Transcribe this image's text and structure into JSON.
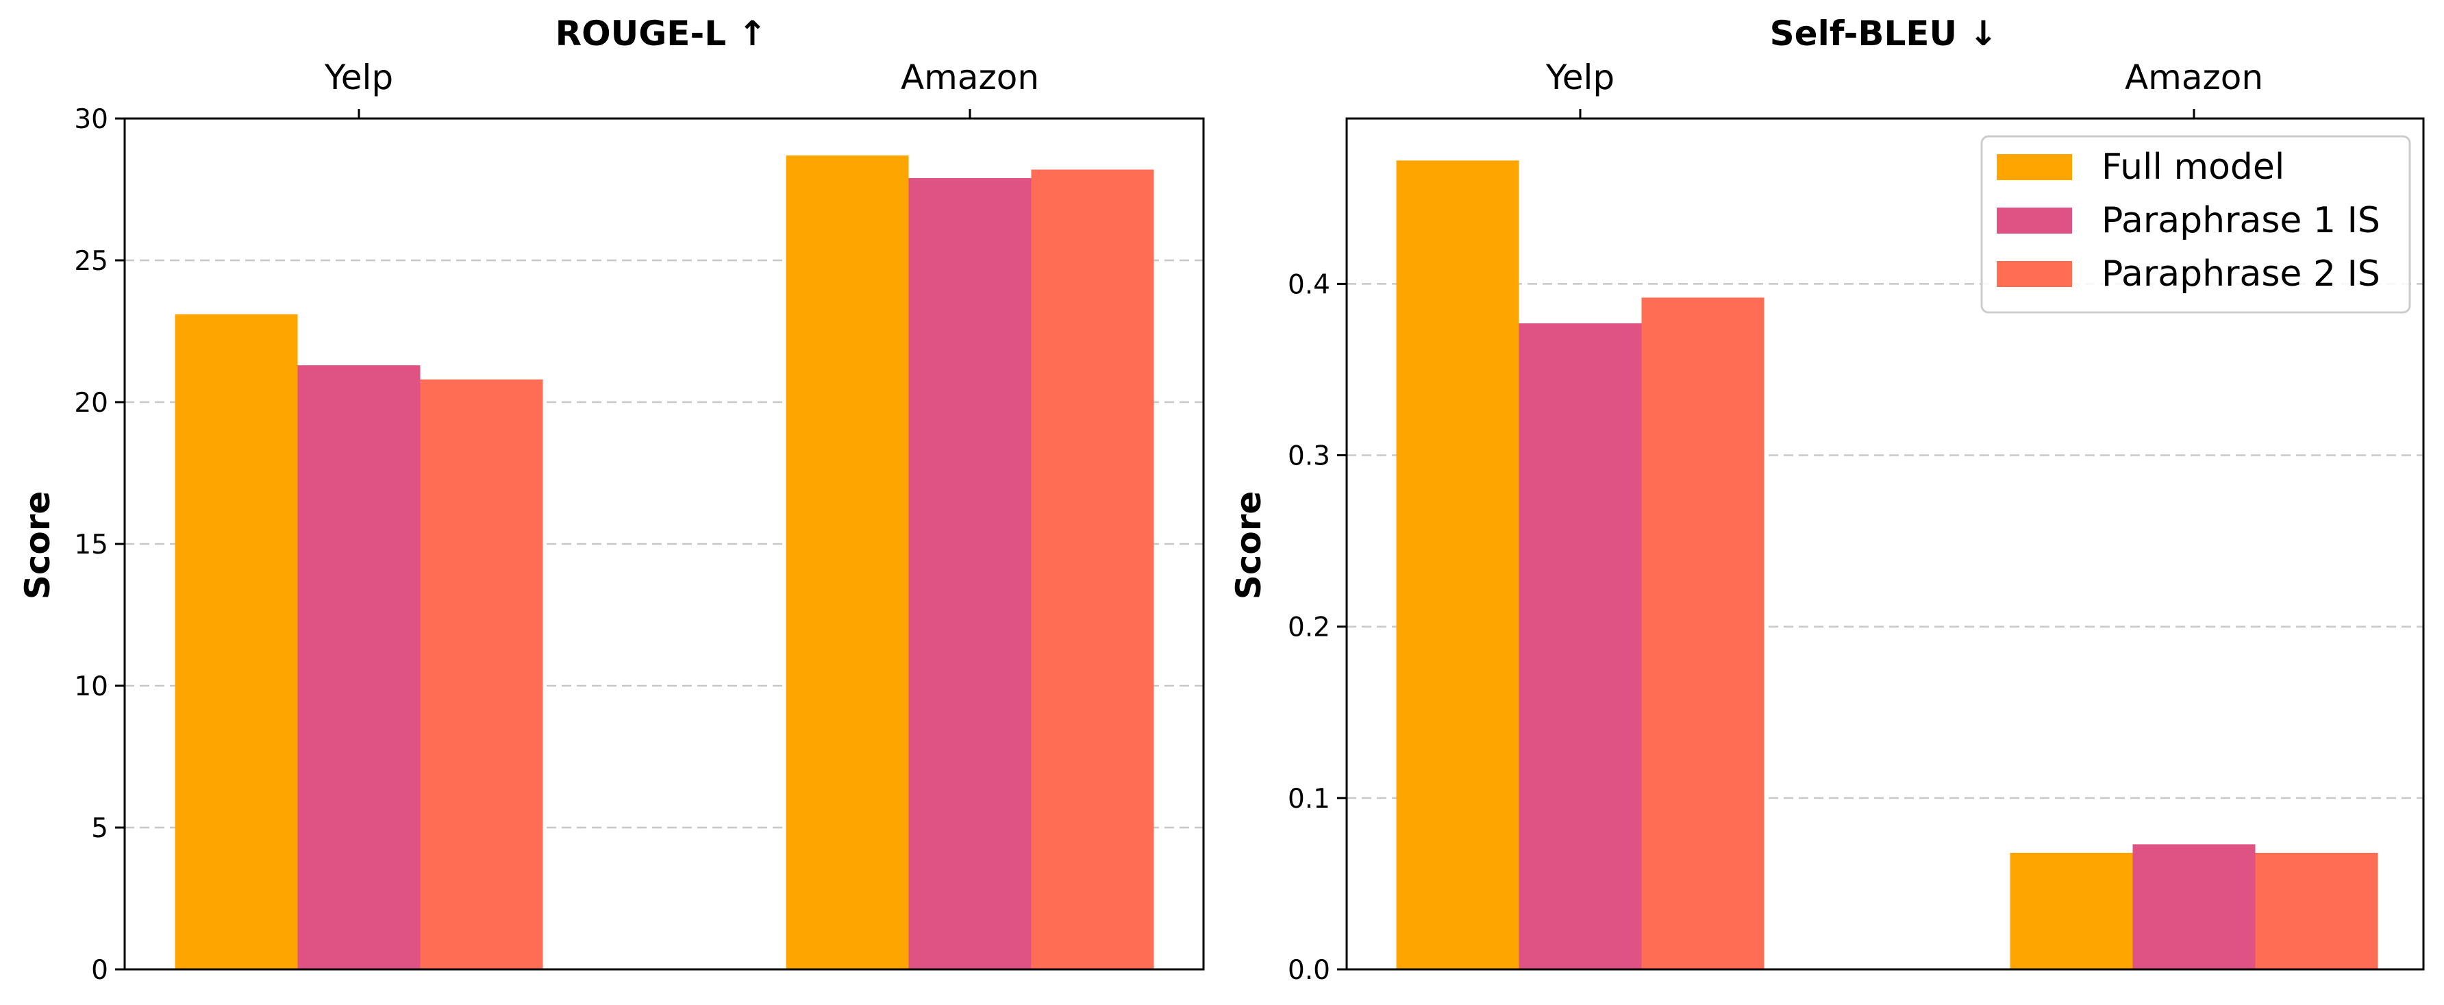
{
  "chart_data": [
    {
      "type": "bar",
      "title": "ROUGE-L ↑",
      "ylabel": "Score",
      "categories": [
        "Yelp",
        "Amazon"
      ],
      "ylim": [
        0,
        30
      ],
      "yticks": [
        "0",
        "5",
        "10",
        "15",
        "20",
        "25",
        "30"
      ],
      "ytick_values": [
        0,
        5,
        10,
        15,
        20,
        25,
        30
      ],
      "grid": true,
      "series": [
        {
          "name": "Full model",
          "color": "#FFA500",
          "values": [
            23.1,
            28.7
          ]
        },
        {
          "name": "Paraphrase 1 IS",
          "color": "#DE5383",
          "values": [
            21.3,
            27.9
          ]
        },
        {
          "name": "Paraphrase 2 IS",
          "color": "#FF6D55",
          "values": [
            20.8,
            28.2
          ]
        }
      ]
    },
    {
      "type": "bar",
      "title": "Self-BLEU ↓",
      "ylabel": "Score",
      "categories": [
        "Yelp",
        "Amazon"
      ],
      "ylim": [
        0,
        0.4965
      ],
      "yticks": [
        "0.0",
        "0.1",
        "0.2",
        "0.3",
        "0.4"
      ],
      "ytick_values": [
        0,
        0.1,
        0.2,
        0.3,
        0.4
      ],
      "grid": true,
      "legend": "top-right",
      "series": [
        {
          "name": "Full model",
          "color": "#FFA500",
          "values": [
            0.472,
            0.068
          ]
        },
        {
          "name": "Paraphrase 1 IS",
          "color": "#DE5383",
          "values": [
            0.377,
            0.073
          ]
        },
        {
          "name": "Paraphrase 2 IS",
          "color": "#FF6D55",
          "values": [
            0.392,
            0.068
          ]
        }
      ]
    }
  ]
}
